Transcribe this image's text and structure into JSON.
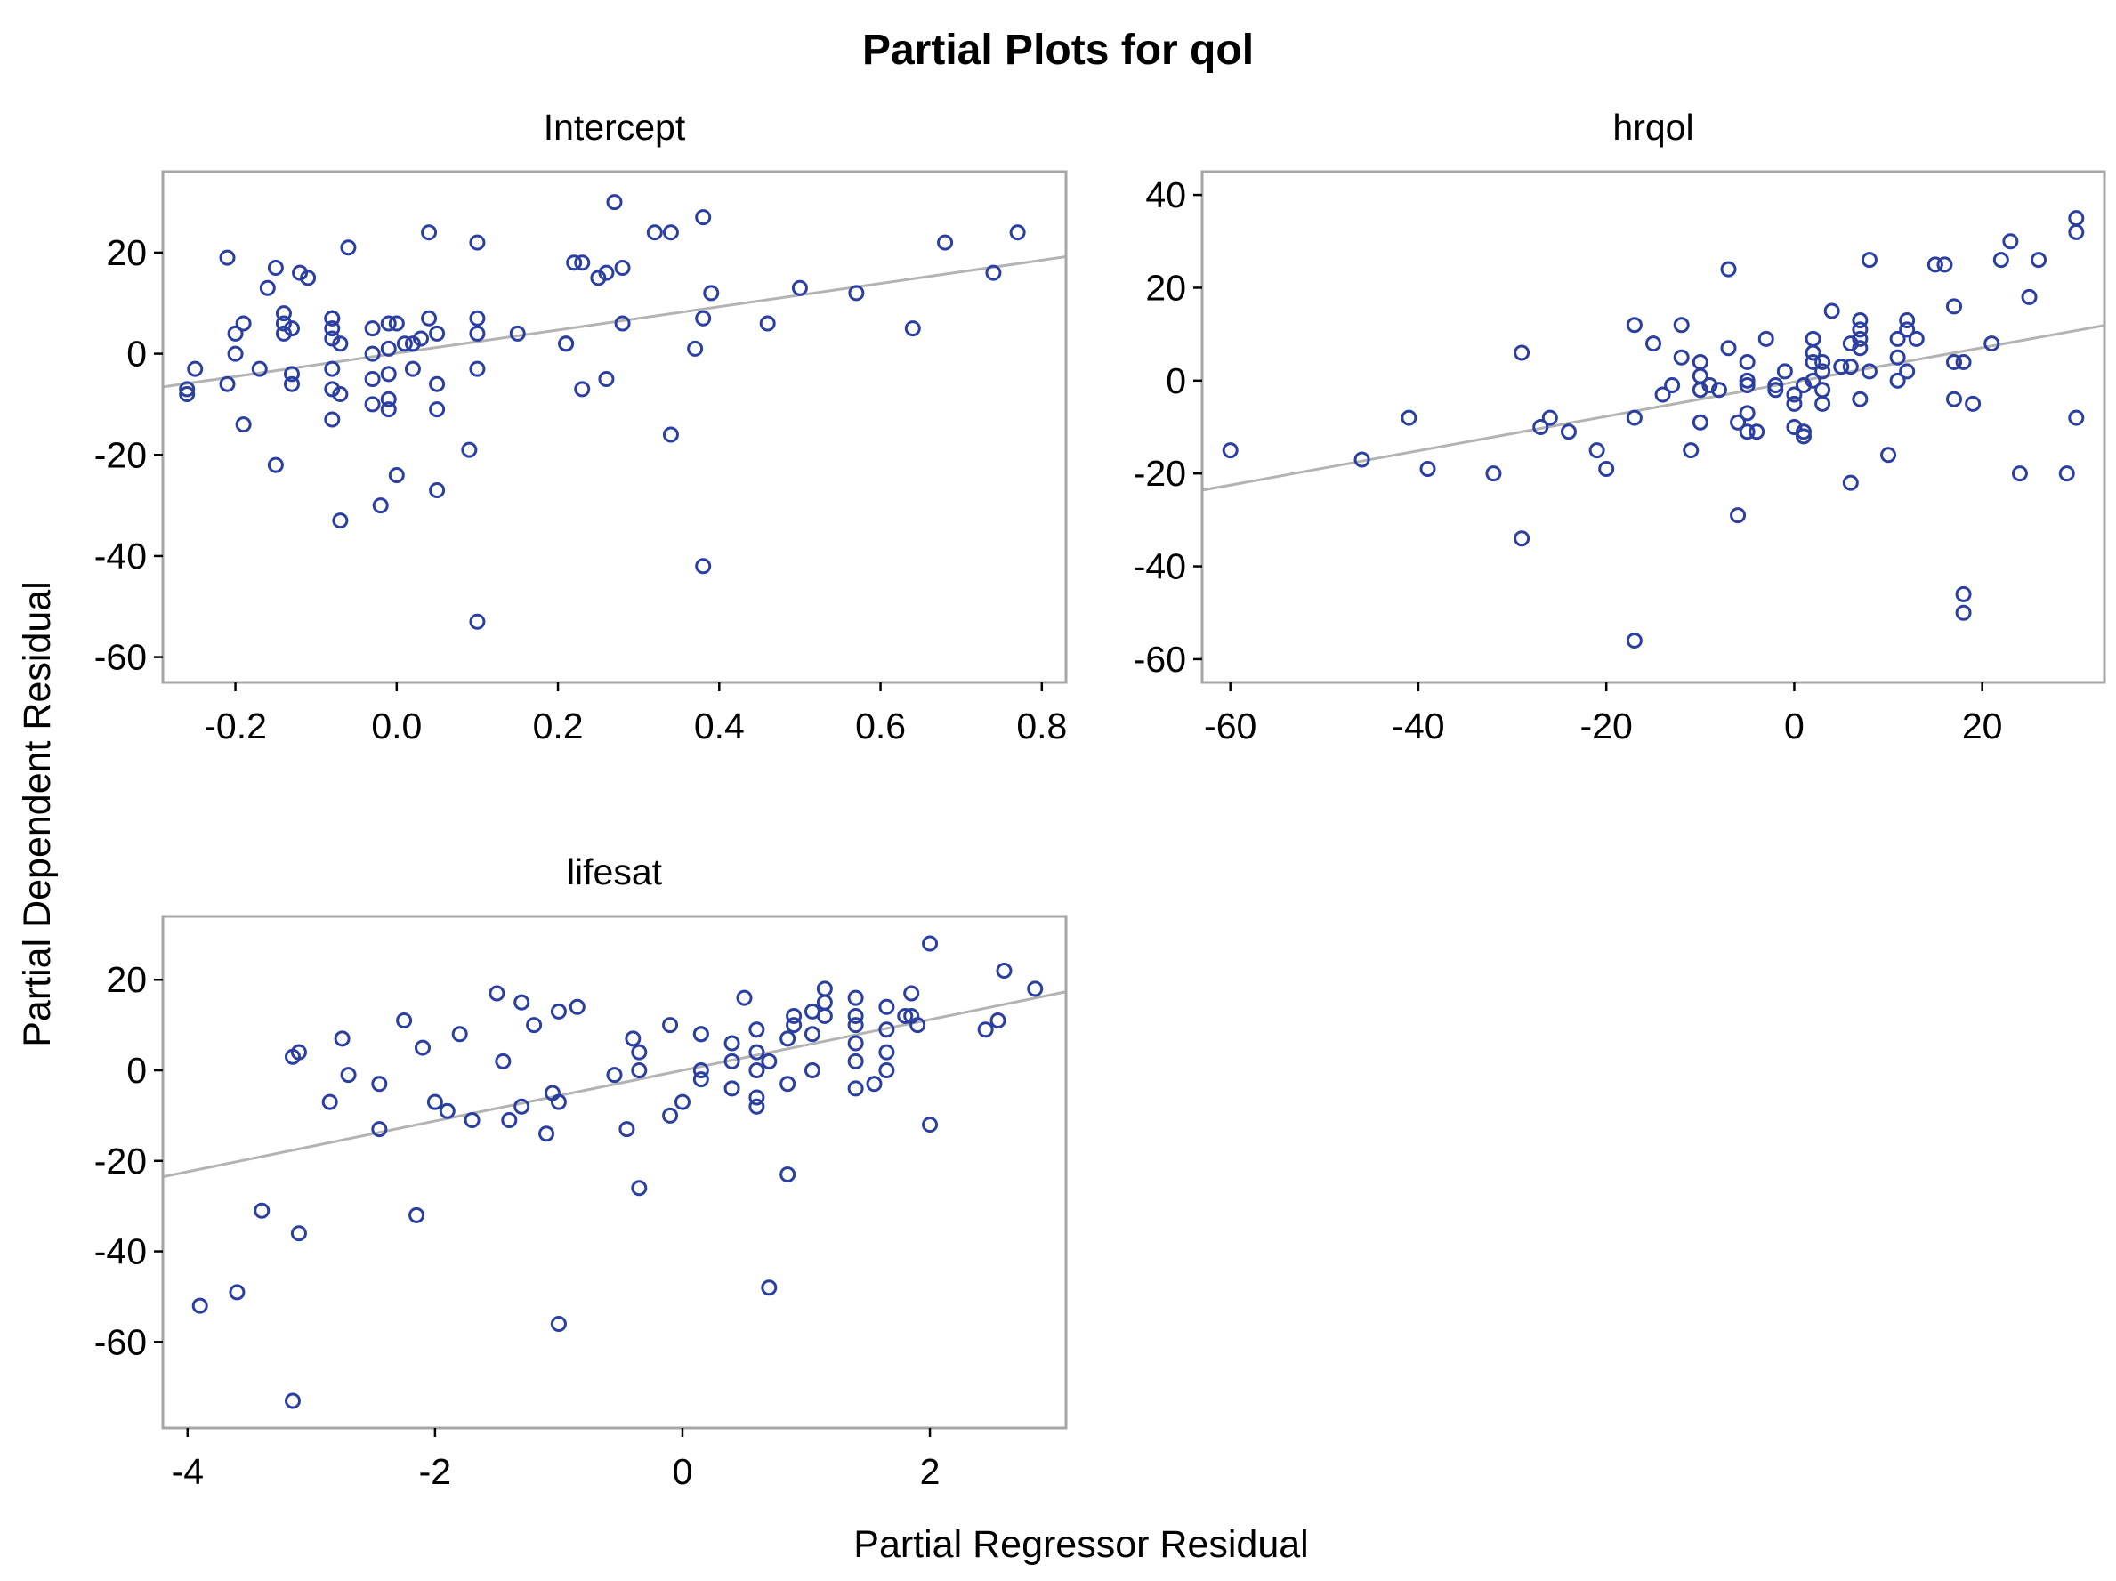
{
  "title": "Partial Plots for qol",
  "xlabel": "Partial Regressor Residual",
  "ylabel": "Partial Dependent Residual",
  "colors": {
    "marker": "#2a3f9f",
    "fit_line": "#b3b3b3",
    "frame": "#a6a6a6"
  },
  "chart_data": [
    {
      "type": "scatter",
      "title": "Intercept",
      "xlim": [
        -0.29,
        0.83
      ],
      "ylim": [
        -65,
        36
      ],
      "xticks": [
        -0.2,
        0.0,
        0.2,
        0.4,
        0.6,
        0.8
      ],
      "xtick_labels": [
        "-0.2",
        "0.0",
        "0.2",
        "0.4",
        "0.6",
        "0.8"
      ],
      "yticks": [
        -60,
        -40,
        -20,
        0,
        20
      ],
      "ytick_labels": [
        "-60",
        "-40",
        "-20",
        "0",
        "20"
      ],
      "fit_line": {
        "slope": 23.0,
        "intercept": 0.1
      },
      "points": [
        [
          -0.26,
          -7
        ],
        [
          -0.26,
          -8
        ],
        [
          -0.25,
          -3
        ],
        [
          -0.21,
          -6
        ],
        [
          -0.21,
          19
        ],
        [
          -0.2,
          4
        ],
        [
          -0.2,
          0
        ],
        [
          -0.19,
          -14
        ],
        [
          -0.19,
          6
        ],
        [
          -0.17,
          -3
        ],
        [
          -0.16,
          13
        ],
        [
          -0.15,
          17
        ],
        [
          -0.15,
          -22
        ],
        [
          -0.14,
          4
        ],
        [
          -0.14,
          6
        ],
        [
          -0.14,
          8
        ],
        [
          -0.13,
          5
        ],
        [
          -0.13,
          -4
        ],
        [
          -0.13,
          -6
        ],
        [
          -0.12,
          16
        ],
        [
          -0.11,
          15
        ],
        [
          -0.08,
          -13
        ],
        [
          -0.08,
          -7
        ],
        [
          -0.08,
          -3
        ],
        [
          -0.08,
          3
        ],
        [
          -0.08,
          5
        ],
        [
          -0.08,
          7
        ],
        [
          -0.08,
          7
        ],
        [
          -0.07,
          -33
        ],
        [
          -0.07,
          -8
        ],
        [
          -0.07,
          2
        ],
        [
          -0.06,
          21
        ],
        [
          -0.03,
          -10
        ],
        [
          -0.03,
          -5
        ],
        [
          -0.03,
          0
        ],
        [
          -0.03,
          5
        ],
        [
          -0.02,
          -30
        ],
        [
          -0.01,
          -11
        ],
        [
          -0.01,
          -9
        ],
        [
          -0.01,
          -4
        ],
        [
          -0.01,
          1
        ],
        [
          -0.01,
          6
        ],
        [
          0.0,
          -24
        ],
        [
          0.0,
          6
        ],
        [
          0.01,
          2
        ],
        [
          0.02,
          -3
        ],
        [
          0.02,
          2
        ],
        [
          0.03,
          3
        ],
        [
          0.04,
          7
        ],
        [
          0.04,
          24
        ],
        [
          0.05,
          -11
        ],
        [
          0.05,
          -6
        ],
        [
          0.05,
          -27
        ],
        [
          0.05,
          4
        ],
        [
          0.09,
          -19
        ],
        [
          0.1,
          -53
        ],
        [
          0.1,
          -3
        ],
        [
          0.1,
          4
        ],
        [
          0.1,
          7
        ],
        [
          0.1,
          22
        ],
        [
          0.15,
          4
        ],
        [
          0.21,
          2
        ],
        [
          0.21,
          2
        ],
        [
          0.22,
          18
        ],
        [
          0.23,
          18
        ],
        [
          0.23,
          -7
        ],
        [
          0.25,
          15
        ],
        [
          0.26,
          16
        ],
        [
          0.26,
          -5
        ],
        [
          0.27,
          30
        ],
        [
          0.28,
          17
        ],
        [
          0.28,
          6
        ],
        [
          0.32,
          24
        ],
        [
          0.34,
          24
        ],
        [
          0.34,
          -16
        ],
        [
          0.37,
          1
        ],
        [
          0.38,
          27
        ],
        [
          0.38,
          7
        ],
        [
          0.38,
          -42
        ],
        [
          0.39,
          12
        ],
        [
          0.46,
          6
        ],
        [
          0.5,
          13
        ],
        [
          0.57,
          12
        ],
        [
          0.64,
          5
        ],
        [
          0.68,
          22
        ],
        [
          0.74,
          16
        ],
        [
          0.77,
          24
        ]
      ]
    },
    {
      "type": "scatter",
      "title": "hrqol",
      "xlim": [
        -63,
        33
      ],
      "ylim": [
        -65,
        45
      ],
      "xticks": [
        -60,
        -40,
        -20,
        0,
        20
      ],
      "xtick_labels": [
        "-60",
        "-40",
        "-20",
        "0",
        "20"
      ],
      "yticks": [
        -60,
        -40,
        -20,
        0,
        20,
        40
      ],
      "ytick_labels": [
        "-60",
        "-40",
        "-20",
        "0",
        "20",
        "40"
      ],
      "fit_line": {
        "slope": 0.37,
        "intercept": -0.3
      },
      "points": [
        [
          -60,
          -15
        ],
        [
          -46,
          -17
        ],
        [
          -41,
          -8
        ],
        [
          -39,
          -19
        ],
        [
          -32,
          -20
        ],
        [
          -29,
          6
        ],
        [
          -29,
          -34
        ],
        [
          -27,
          -10
        ],
        [
          -26,
          -8
        ],
        [
          -24,
          -11
        ],
        [
          -21,
          -15
        ],
        [
          -20,
          -19
        ],
        [
          -17,
          -56
        ],
        [
          -17,
          -8
        ],
        [
          -17,
          12
        ],
        [
          -15,
          8
        ],
        [
          -14,
          -3
        ],
        [
          -13,
          -1
        ],
        [
          -12,
          12
        ],
        [
          -12,
          5
        ],
        [
          -11,
          -15
        ],
        [
          -10,
          -9
        ],
        [
          -10,
          1
        ],
        [
          -10,
          -2
        ],
        [
          -10,
          4
        ],
        [
          -9,
          -1
        ],
        [
          -8,
          -2
        ],
        [
          -7,
          24
        ],
        [
          -7,
          7
        ],
        [
          -6,
          -29
        ],
        [
          -6,
          -9
        ],
        [
          -5,
          -11
        ],
        [
          -5,
          -7
        ],
        [
          -5,
          -1
        ],
        [
          -5,
          0
        ],
        [
          -5,
          4
        ],
        [
          -4,
          -11
        ],
        [
          -3,
          9
        ],
        [
          -2,
          -1
        ],
        [
          -2,
          -2
        ],
        [
          -1,
          2
        ],
        [
          0,
          -5
        ],
        [
          0,
          -3
        ],
        [
          0,
          -10
        ],
        [
          1,
          -11
        ],
        [
          1,
          -12
        ],
        [
          1,
          -1
        ],
        [
          2,
          0
        ],
        [
          2,
          4
        ],
        [
          2,
          6
        ],
        [
          2,
          9
        ],
        [
          3,
          -5
        ],
        [
          3,
          -2
        ],
        [
          3,
          2
        ],
        [
          3,
          4
        ],
        [
          4,
          15
        ],
        [
          5,
          3
        ],
        [
          6,
          -22
        ],
        [
          6,
          3
        ],
        [
          6,
          8
        ],
        [
          7,
          -4
        ],
        [
          7,
          7
        ],
        [
          7,
          9
        ],
        [
          7,
          11
        ],
        [
          7,
          13
        ],
        [
          8,
          2
        ],
        [
          8,
          26
        ],
        [
          10,
          -16
        ],
        [
          11,
          0
        ],
        [
          11,
          5
        ],
        [
          11,
          9
        ],
        [
          12,
          2
        ],
        [
          12,
          11
        ],
        [
          12,
          13
        ],
        [
          13,
          9
        ],
        [
          15,
          25
        ],
        [
          16,
          25
        ],
        [
          17,
          -4
        ],
        [
          17,
          16
        ],
        [
          17,
          4
        ],
        [
          18,
          -46
        ],
        [
          18,
          4
        ],
        [
          18,
          -50
        ],
        [
          19,
          -5
        ],
        [
          21,
          8
        ],
        [
          22,
          26
        ],
        [
          23,
          30
        ],
        [
          24,
          -20
        ],
        [
          25,
          18
        ],
        [
          26,
          26
        ],
        [
          29,
          -20
        ],
        [
          30,
          35
        ],
        [
          30,
          32
        ],
        [
          30,
          -8
        ]
      ]
    },
    {
      "type": "scatter",
      "title": "lifesat",
      "xlim": [
        -4.2,
        3.1
      ],
      "ylim": [
        -79,
        34
      ],
      "xticks": [
        -4,
        -2,
        0,
        2
      ],
      "xtick_labels": [
        "-4",
        "-2",
        "0",
        "2"
      ],
      "yticks": [
        -60,
        -40,
        -20,
        0,
        20
      ],
      "ytick_labels": [
        "-60",
        "-40",
        "-20",
        "0",
        "20"
      ],
      "fit_line": {
        "slope": 5.6,
        "intercept": 0
      },
      "points": [
        [
          -3.9,
          -52
        ],
        [
          -3.6,
          -49
        ],
        [
          -3.4,
          -31
        ],
        [
          -3.15,
          -73
        ],
        [
          -3.15,
          3
        ],
        [
          -3.1,
          4
        ],
        [
          -3.1,
          -36
        ],
        [
          -2.85,
          -7
        ],
        [
          -2.75,
          7
        ],
        [
          -2.7,
          -1
        ],
        [
          -2.45,
          -3
        ],
        [
          -2.45,
          -13
        ],
        [
          -2.25,
          11
        ],
        [
          -2.15,
          -32
        ],
        [
          -2.1,
          5
        ],
        [
          -2.0,
          -7
        ],
        [
          -1.9,
          -9
        ],
        [
          -1.8,
          8
        ],
        [
          -1.7,
          -11
        ],
        [
          -1.5,
          17
        ],
        [
          -1.45,
          2
        ],
        [
          -1.4,
          -11
        ],
        [
          -1.3,
          -8
        ],
        [
          -1.3,
          15
        ],
        [
          -1.2,
          10
        ],
        [
          -1.1,
          -14
        ],
        [
          -1.05,
          -5
        ],
        [
          -1.0,
          -7
        ],
        [
          -1.0,
          13
        ],
        [
          -1.0,
          -56
        ],
        [
          -0.85,
          14
        ],
        [
          -0.55,
          -1
        ],
        [
          -0.45,
          -13
        ],
        [
          -0.4,
          7
        ],
        [
          -0.35,
          4
        ],
        [
          -0.35,
          0
        ],
        [
          -0.35,
          -26
        ],
        [
          -0.1,
          -10
        ],
        [
          -0.1,
          10
        ],
        [
          0.0,
          -7
        ],
        [
          0.15,
          8
        ],
        [
          0.15,
          8
        ],
        [
          0.15,
          0
        ],
        [
          0.15,
          -2
        ],
        [
          0.4,
          2
        ],
        [
          0.4,
          6
        ],
        [
          0.4,
          -4
        ],
        [
          0.5,
          16
        ],
        [
          0.6,
          -6
        ],
        [
          0.6,
          -8
        ],
        [
          0.6,
          0
        ],
        [
          0.6,
          4
        ],
        [
          0.6,
          9
        ],
        [
          0.7,
          -48
        ],
        [
          0.7,
          2
        ],
        [
          0.85,
          -23
        ],
        [
          0.85,
          -3
        ],
        [
          0.85,
          7
        ],
        [
          0.9,
          12
        ],
        [
          0.9,
          10
        ],
        [
          1.05,
          8
        ],
        [
          1.05,
          13
        ],
        [
          1.05,
          0
        ],
        [
          1.15,
          12
        ],
        [
          1.15,
          15
        ],
        [
          1.15,
          18
        ],
        [
          1.4,
          16
        ],
        [
          1.4,
          12
        ],
        [
          1.4,
          10
        ],
        [
          1.4,
          6
        ],
        [
          1.4,
          2
        ],
        [
          1.4,
          -4
        ],
        [
          1.55,
          -3
        ],
        [
          1.65,
          14
        ],
        [
          1.65,
          9
        ],
        [
          1.65,
          4
        ],
        [
          1.65,
          0
        ],
        [
          1.8,
          12
        ],
        [
          1.85,
          17
        ],
        [
          1.85,
          12
        ],
        [
          1.9,
          10
        ],
        [
          2.0,
          28
        ],
        [
          2.0,
          -12
        ],
        [
          2.45,
          9
        ],
        [
          2.55,
          11
        ],
        [
          2.6,
          22
        ],
        [
          2.85,
          18
        ]
      ]
    }
  ]
}
